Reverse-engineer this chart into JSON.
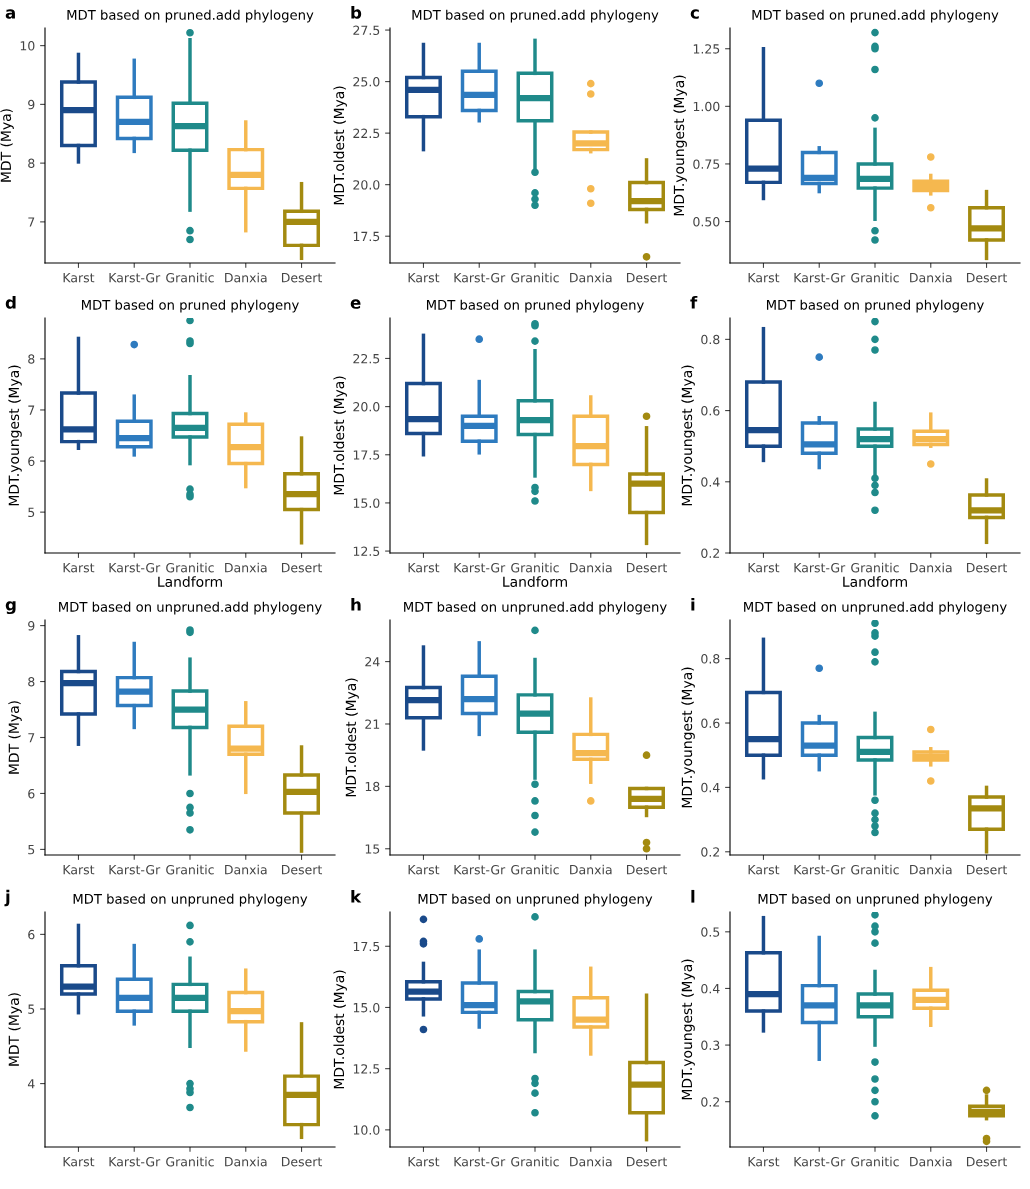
{
  "chart_data": [
    {
      "type": "box",
      "title": "MDT based on pruned.add phylogeny",
      "ylabel": "MDT (Mya)",
      "annotations": [
        "a"
      ],
      "categories": [
        "Karst",
        "Karst-Gr",
        "Granitic",
        "Danxia",
        "Desert"
      ],
      "colors": [
        "#1a4a8a",
        "#2e7bbf",
        "#1f8a8a",
        "#f5b84f",
        "#a38a10"
      ],
      "ylim": [
        6.3,
        10.3
      ],
      "yticks": [
        7,
        8,
        9,
        10
      ],
      "grid": false,
      "boxes": [
        {
          "low": 8.02,
          "q1": 8.3,
          "median": 8.9,
          "q3": 9.38,
          "high": 9.85
        },
        {
          "low": 8.2,
          "q1": 8.42,
          "median": 8.7,
          "q3": 9.12,
          "high": 9.75
        },
        {
          "low": 7.2,
          "q1": 8.22,
          "median": 8.63,
          "q3": 9.02,
          "high": 10.1,
          "outliers": [
            6.7,
            6.85,
            10.22
          ]
        },
        {
          "low": 6.85,
          "q1": 7.57,
          "median": 7.8,
          "q3": 8.23,
          "high": 8.7
        },
        {
          "low": 6.38,
          "q1": 6.6,
          "median": 7.0,
          "q3": 7.18,
          "high": 7.65
        }
      ]
    },
    {
      "type": "box",
      "title": "MDT based on pruned.add phylogeny",
      "ylabel": "MDT.oldest (Mya)",
      "annotations": [
        "b"
      ],
      "categories": [
        "Karst",
        "Karst-Gr",
        "Granitic",
        "Danxia",
        "Desert"
      ],
      "colors": [
        "#1a4a8a",
        "#2e7bbf",
        "#1f8a8a",
        "#f5b84f",
        "#a38a10"
      ],
      "ylim": [
        16.2,
        27.6
      ],
      "yticks": [
        17.5,
        {
          "value": 20,
          "label": "20.0"
        },
        22.5,
        {
          "value": 25,
          "label": "25.0"
        },
        27.5
      ],
      "grid": false,
      "boxes": [
        {
          "low": 21.7,
          "q1": 23.3,
          "median": 24.6,
          "q3": 25.2,
          "high": 26.8
        },
        {
          "low": 23.1,
          "q1": 23.6,
          "median": 24.35,
          "q3": 25.5,
          "high": 26.8
        },
        {
          "low": 20.7,
          "q1": 23.1,
          "median": 24.2,
          "q3": 25.4,
          "high": 27.0,
          "outliers": [
            19.0,
            19.3,
            19.6,
            20.6
          ]
        },
        {
          "low": 21.6,
          "q1": 21.7,
          "median": 22.0,
          "q3": 22.55,
          "high": 22.55,
          "outliers": [
            19.1,
            19.8,
            24.4,
            24.9
          ]
        },
        {
          "low": 18.2,
          "q1": 18.8,
          "median": 19.2,
          "q3": 20.1,
          "high": 21.2,
          "outliers": [
            16.5
          ]
        }
      ]
    },
    {
      "type": "box",
      "title": "MDT based on pruned.add phylogeny",
      "ylabel": "MDT.youngest (Mya)",
      "annotations": [
        "c"
      ],
      "categories": [
        "Karst",
        "Karst-Gr",
        "Granitic",
        "Danxia",
        "Desert"
      ],
      "colors": [
        "#1a4a8a",
        "#2e7bbf",
        "#1f8a8a",
        "#f5b84f",
        "#a38a10"
      ],
      "ylim": [
        0.32,
        1.34
      ],
      "yticks": [
        {
          "value": 0.5,
          "label": "0.50"
        },
        0.75,
        {
          "value": 1.0,
          "label": "1.00"
        },
        1.25
      ],
      "grid": false,
      "boxes": [
        {
          "low": 0.6,
          "q1": 0.67,
          "median": 0.73,
          "q3": 0.94,
          "high": 1.25
        },
        {
          "low": 0.63,
          "q1": 0.665,
          "median": 0.69,
          "q3": 0.8,
          "high": 0.82,
          "outliers": [
            1.1
          ]
        },
        {
          "low": 0.51,
          "q1": 0.645,
          "median": 0.685,
          "q3": 0.75,
          "high": 0.9,
          "outliers": [
            0.42,
            0.46,
            0.95,
            1.16,
            1.25,
            1.26,
            1.32
          ]
        },
        {
          "low": 0.62,
          "q1": 0.635,
          "median": 0.655,
          "q3": 0.675,
          "high": 0.7,
          "outliers": [
            0.56,
            0.78
          ]
        },
        {
          "low": 0.34,
          "q1": 0.42,
          "median": 0.47,
          "q3": 0.56,
          "high": 0.63
        }
      ]
    },
    {
      "type": "box",
      "title": "MDT based on pruned phylogeny",
      "ylabel": "MDT.youngest (Mya)",
      "xlabel": "Landform",
      "annotations": [
        "d"
      ],
      "categories": [
        "Karst",
        "Karst-Gr",
        "Granitic",
        "Danxia",
        "Desert"
      ],
      "colors": [
        "#1a4a8a",
        "#2e7bbf",
        "#1f8a8a",
        "#f5b84f",
        "#a38a10"
      ],
      "ylim": [
        4.2,
        8.8
      ],
      "yticks": [
        5,
        6,
        7,
        8
      ],
      "grid": false,
      "boxes": [
        {
          "low": 6.25,
          "q1": 6.38,
          "median": 6.62,
          "q3": 7.33,
          "high": 8.4
        },
        {
          "low": 6.12,
          "q1": 6.28,
          "median": 6.45,
          "q3": 6.78,
          "high": 7.27,
          "outliers": [
            8.28
          ]
        },
        {
          "low": 5.95,
          "q1": 6.47,
          "median": 6.65,
          "q3": 6.93,
          "high": 7.65,
          "outliers": [
            5.3,
            5.35,
            5.45,
            8.3,
            8.35,
            8.75
          ]
        },
        {
          "low": 5.5,
          "q1": 5.95,
          "median": 6.27,
          "q3": 6.72,
          "high": 6.92
        },
        {
          "low": 4.4,
          "q1": 5.05,
          "median": 5.35,
          "q3": 5.75,
          "high": 6.45
        }
      ]
    },
    {
      "type": "box",
      "title": "MDT based on pruned phylogeny",
      "ylabel": "MDT.oldest (Mya)",
      "xlabel": "Landform",
      "annotations": [
        "e"
      ],
      "categories": [
        "Karst",
        "Karst-Gr",
        "Granitic",
        "Danxia",
        "Desert"
      ],
      "colors": [
        "#1a4a8a",
        "#2e7bbf",
        "#1f8a8a",
        "#f5b84f",
        "#a38a10"
      ],
      "ylim": [
        12.4,
        24.6
      ],
      "yticks": [
        12.5,
        {
          "value": 15,
          "label": "15.0"
        },
        17.5,
        {
          "value": 20,
          "label": "20.0"
        },
        22.5
      ],
      "grid": false,
      "boxes": [
        {
          "low": 17.5,
          "q1": 18.6,
          "median": 19.35,
          "q3": 21.2,
          "high": 23.7
        },
        {
          "low": 17.6,
          "q1": 18.2,
          "median": 19.0,
          "q3": 19.5,
          "high": 21.3,
          "outliers": [
            23.5
          ]
        },
        {
          "low": 16.4,
          "q1": 18.55,
          "median": 19.3,
          "q3": 20.3,
          "high": 22.9,
          "outliers": [
            15.1,
            15.6,
            15.8,
            23.4,
            24.2,
            24.3
          ]
        },
        {
          "low": 15.7,
          "q1": 17.0,
          "median": 17.95,
          "q3": 19.5,
          "high": 20.5
        },
        {
          "low": 12.9,
          "q1": 14.5,
          "median": 16.0,
          "q3": 16.5,
          "high": 18.9,
          "outliers": [
            19.5
          ]
        }
      ]
    },
    {
      "type": "box",
      "title": "MDT based on pruned phylogeny",
      "ylabel": "MDT.youngest (Mya)",
      "xlabel": "Landform",
      "annotations": [
        "f"
      ],
      "categories": [
        "Karst",
        "Karst-Gr",
        "Granitic",
        "Danxia",
        "Desert"
      ],
      "colors": [
        "#1a4a8a",
        "#2e7bbf",
        "#1f8a8a",
        "#f5b84f",
        "#a38a10"
      ],
      "ylim": [
        0.2,
        0.86
      ],
      "yticks": [
        0.2,
        0.4,
        0.6,
        0.8
      ],
      "grid": false,
      "boxes": [
        {
          "low": 0.46,
          "q1": 0.5,
          "median": 0.545,
          "q3": 0.68,
          "high": 0.83
        },
        {
          "low": 0.44,
          "q1": 0.48,
          "median": 0.505,
          "q3": 0.565,
          "high": 0.58,
          "outliers": [
            0.75
          ]
        },
        {
          "low": 0.42,
          "q1": 0.5,
          "median": 0.52,
          "q3": 0.548,
          "high": 0.62,
          "outliers": [
            0.32,
            0.37,
            0.39,
            0.41,
            0.77,
            0.8,
            0.85
          ]
        },
        {
          "low": 0.5,
          "q1": 0.505,
          "median": 0.52,
          "q3": 0.542,
          "high": 0.59,
          "outliers": [
            0.45
          ]
        },
        {
          "low": 0.23,
          "q1": 0.3,
          "median": 0.32,
          "q3": 0.363,
          "high": 0.405
        }
      ]
    },
    {
      "type": "box",
      "title": "MDT based on unpruned.add phylogeny",
      "ylabel": "MDT (Mya)",
      "annotations": [
        "g"
      ],
      "categories": [
        "Karst",
        "Karst-Gr",
        "Granitic",
        "Danxia",
        "Desert"
      ],
      "colors": [
        "#1a4a8a",
        "#2e7bbf",
        "#1f8a8a",
        "#f5b84f",
        "#a38a10"
      ],
      "ylim": [
        4.9,
        9.1
      ],
      "yticks": [
        5,
        6,
        7,
        8,
        9
      ],
      "grid": false,
      "boxes": [
        {
          "low": 6.88,
          "q1": 7.42,
          "median": 7.97,
          "q3": 8.18,
          "high": 8.8
        },
        {
          "low": 7.18,
          "q1": 7.57,
          "median": 7.82,
          "q3": 8.07,
          "high": 8.68
        },
        {
          "low": 6.35,
          "q1": 7.18,
          "median": 7.5,
          "q3": 7.83,
          "high": 8.4,
          "outliers": [
            5.35,
            5.65,
            5.75,
            6.0,
            8.88,
            8.92
          ]
        },
        {
          "low": 6.02,
          "q1": 6.7,
          "median": 6.8,
          "q3": 7.2,
          "high": 7.62
        },
        {
          "low": 4.97,
          "q1": 5.65,
          "median": 6.03,
          "q3": 6.33,
          "high": 6.83
        }
      ]
    },
    {
      "type": "box",
      "title": "MDT based on unpruned.add phylogeny",
      "ylabel": "MDT.oldest (Mya)",
      "annotations": [
        "h"
      ],
      "categories": [
        "Karst",
        "Karst-Gr",
        "Granitic",
        "Danxia",
        "Desert"
      ],
      "colors": [
        "#1a4a8a",
        "#2e7bbf",
        "#1f8a8a",
        "#f5b84f",
        "#a38a10"
      ],
      "ylim": [
        14.7,
        26
      ],
      "yticks": [
        15,
        18,
        21,
        24
      ],
      "grid": false,
      "boxes": [
        {
          "low": 19.8,
          "q1": 21.3,
          "median": 22.15,
          "q3": 22.75,
          "high": 24.7
        },
        {
          "low": 20.5,
          "q1": 21.5,
          "median": 22.2,
          "q3": 23.3,
          "high": 24.9
        },
        {
          "low": 18.4,
          "q1": 20.6,
          "median": 21.5,
          "q3": 22.4,
          "high": 24.1,
          "outliers": [
            15.8,
            16.6,
            17.3,
            18.1,
            25.5
          ]
        },
        {
          "low": 18.2,
          "q1": 19.3,
          "median": 19.6,
          "q3": 20.5,
          "high": 22.2,
          "outliers": [
            17.3
          ]
        },
        {
          "low": 16.6,
          "q1": 17.0,
          "median": 17.4,
          "q3": 17.9,
          "high": 17.9,
          "outliers": [
            15.0,
            15.3,
            19.5
          ]
        }
      ]
    },
    {
      "type": "box",
      "title": "MDT based on unpruned.add phylogeny",
      "ylabel": "MDT.youngest (Mya)",
      "annotations": [
        "i"
      ],
      "categories": [
        "Karst",
        "Karst-Gr",
        "Granitic",
        "Danxia",
        "Desert"
      ],
      "colors": [
        "#1a4a8a",
        "#2e7bbf",
        "#1f8a8a",
        "#f5b84f",
        "#a38a10"
      ],
      "ylim": [
        0.19,
        0.92
      ],
      "yticks": [
        0.2,
        0.4,
        0.6,
        0.8
      ],
      "grid": false,
      "boxes": [
        {
          "low": 0.43,
          "q1": 0.5,
          "median": 0.55,
          "q3": 0.695,
          "high": 0.86
        },
        {
          "low": 0.455,
          "q1": 0.5,
          "median": 0.53,
          "q3": 0.6,
          "high": 0.62,
          "outliers": [
            0.77
          ]
        },
        {
          "low": 0.38,
          "q1": 0.485,
          "median": 0.51,
          "q3": 0.555,
          "high": 0.63,
          "outliers": [
            0.26,
            0.28,
            0.3,
            0.32,
            0.36,
            0.79,
            0.82,
            0.87,
            0.88,
            0.91
          ]
        },
        {
          "low": 0.47,
          "q1": 0.485,
          "median": 0.495,
          "q3": 0.51,
          "high": 0.52,
          "outliers": [
            0.42,
            0.58
          ]
        },
        {
          "low": 0.2,
          "q1": 0.27,
          "median": 0.335,
          "q3": 0.37,
          "high": 0.4
        }
      ]
    },
    {
      "type": "box",
      "title": "MDT based on unpruned phylogeny",
      "ylabel": "MDT (Mya)",
      "annotations": [
        "j"
      ],
      "categories": [
        "Karst",
        "Karst-Gr",
        "Granitic",
        "Danxia",
        "Desert"
      ],
      "colors": [
        "#1a4a8a",
        "#2e7bbf",
        "#1f8a8a",
        "#f5b84f",
        "#a38a10"
      ],
      "ylim": [
        3.15,
        6.3
      ],
      "yticks": [
        4,
        5,
        6
      ],
      "grid": false,
      "boxes": [
        {
          "low": 4.95,
          "q1": 5.2,
          "median": 5.3,
          "q3": 5.58,
          "high": 6.12
        },
        {
          "low": 4.8,
          "q1": 4.97,
          "median": 5.15,
          "q3": 5.4,
          "high": 5.85
        },
        {
          "low": 4.5,
          "q1": 4.97,
          "median": 5.15,
          "q3": 5.33,
          "high": 5.68,
          "outliers": [
            3.68,
            3.88,
            3.93,
            4.0,
            5.9,
            6.12
          ]
        },
        {
          "low": 4.45,
          "q1": 4.83,
          "median": 4.97,
          "q3": 5.22,
          "high": 5.52
        },
        {
          "low": 3.28,
          "q1": 3.45,
          "median": 3.85,
          "q3": 4.1,
          "high": 4.8
        }
      ]
    },
    {
      "type": "box",
      "title": "MDT based on unpruned phylogeny",
      "ylabel": "MDT.oldest (Mya)",
      "annotations": [
        "k"
      ],
      "categories": [
        "Karst",
        "Karst-Gr",
        "Granitic",
        "Danxia",
        "Desert"
      ],
      "colors": [
        "#1a4a8a",
        "#2e7bbf",
        "#1f8a8a",
        "#f5b84f",
        "#a38a10"
      ],
      "ylim": [
        9.3,
        18.9
      ],
      "yticks": [
        {
          "value": 10,
          "label": "10.0"
        },
        12.5,
        {
          "value": 15,
          "label": "15.0"
        },
        17.5
      ],
      "grid": false,
      "boxes": [
        {
          "low": 14.7,
          "q1": 15.35,
          "median": 15.65,
          "q3": 16.05,
          "high": 16.8,
          "outliers": [
            14.1,
            17.6,
            17.7,
            18.6
          ]
        },
        {
          "low": 14.2,
          "q1": 14.8,
          "median": 15.1,
          "q3": 16.0,
          "high": 17.3,
          "outliers": [
            17.8
          ]
        },
        {
          "low": 13.2,
          "q1": 14.5,
          "median": 15.25,
          "q3": 15.65,
          "high": 17.3,
          "outliers": [
            10.7,
            11.5,
            11.9,
            12.1,
            18.7
          ]
        },
        {
          "low": 13.1,
          "q1": 14.2,
          "median": 14.5,
          "q3": 15.4,
          "high": 16.6
        },
        {
          "low": 9.6,
          "q1": 10.7,
          "median": 11.85,
          "q3": 12.75,
          "high": 15.5
        }
      ]
    },
    {
      "type": "box",
      "title": "MDT based on unpruned phylogeny",
      "ylabel": "MDT.youngest (Mya)",
      "annotations": [
        "l"
      ],
      "categories": [
        "Karst",
        "Karst-Gr",
        "Granitic",
        "Danxia",
        "Desert"
      ],
      "colors": [
        "#1a4a8a",
        "#2e7bbf",
        "#1f8a8a",
        "#f5b84f",
        "#a38a10"
      ],
      "ylim": [
        0.12,
        0.535
      ],
      "yticks": [
        0.2,
        0.3,
        0.4,
        0.5
      ],
      "grid": false,
      "boxes": [
        {
          "low": 0.325,
          "q1": 0.36,
          "median": 0.39,
          "q3": 0.463,
          "high": 0.525
        },
        {
          "low": 0.275,
          "q1": 0.34,
          "median": 0.37,
          "q3": 0.405,
          "high": 0.49
        },
        {
          "low": 0.3,
          "q1": 0.35,
          "median": 0.37,
          "q3": 0.39,
          "high": 0.43,
          "outliers": [
            0.175,
            0.2,
            0.22,
            0.24,
            0.27,
            0.48,
            0.5,
            0.51,
            0.53
          ]
        },
        {
          "low": 0.335,
          "q1": 0.365,
          "median": 0.38,
          "q3": 0.397,
          "high": 0.435
        },
        {
          "low": 0.17,
          "q1": 0.175,
          "median": 0.182,
          "q3": 0.192,
          "high": 0.21,
          "outliers": [
            0.13,
            0.135,
            0.22
          ]
        }
      ]
    }
  ]
}
